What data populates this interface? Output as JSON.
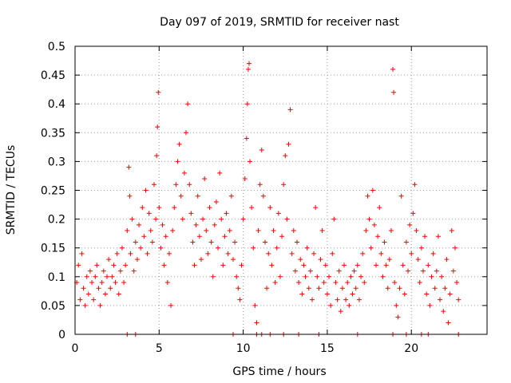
{
  "chart_data": {
    "type": "scatter",
    "title": "Day 097 of 2019, SRMTID for receiver nast",
    "xlabel": "GPS time / hours",
    "ylabel": "SRMTID / TECUs",
    "xlim": [
      0,
      24.5
    ],
    "ylim": [
      0,
      0.5
    ],
    "x_ticks": [
      "0",
      "5",
      "10",
      "15",
      "20"
    ],
    "y_ticks": [
      "0",
      "0.05",
      "0.1",
      "0.15",
      "0.2",
      "0.25",
      "0.3",
      "0.35",
      "0.4",
      "0.45",
      "0.5"
    ],
    "grid": true,
    "marker": "plus",
    "color": "#ff0000",
    "series": [
      {
        "name": "",
        "points": [
          [
            0.1,
            0.09
          ],
          [
            0.2,
            0.12
          ],
          [
            0.3,
            0.06
          ],
          [
            0.4,
            0.14
          ],
          [
            0.5,
            0.08
          ],
          [
            0.6,
            0.05
          ],
          [
            0.7,
            0.1
          ],
          [
            0.8,
            0.07
          ],
          [
            0.9,
            0.11
          ],
          [
            1.0,
            0.09
          ],
          [
            1.1,
            0.06
          ],
          [
            1.2,
            0.1
          ],
          [
            1.3,
            0.12
          ],
          [
            1.4,
            0.08
          ],
          [
            1.5,
            0.05
          ],
          [
            1.6,
            0.09
          ],
          [
            1.7,
            0.11
          ],
          [
            1.8,
            0.07
          ],
          [
            1.9,
            0.1
          ],
          [
            2.0,
            0.13
          ],
          [
            2.1,
            0.08
          ],
          [
            2.2,
            0.1
          ],
          [
            2.3,
            0.12
          ],
          [
            2.4,
            0.09
          ],
          [
            2.5,
            0.14
          ],
          [
            2.6,
            0.07
          ],
          [
            2.7,
            0.11
          ],
          [
            2.8,
            0.15
          ],
          [
            2.9,
            0.09
          ],
          [
            3.0,
            0.12
          ],
          [
            3.1,
            0.18
          ],
          [
            3.2,
            0.29
          ],
          [
            3.25,
            0.24
          ],
          [
            3.3,
            0.14
          ],
          [
            3.4,
            0.2
          ],
          [
            3.5,
            0.11
          ],
          [
            3.6,
            0.16
          ],
          [
            3.7,
            0.13
          ],
          [
            3.8,
            0.19
          ],
          [
            3.9,
            0.15
          ],
          [
            4.0,
            0.22
          ],
          [
            4.1,
            0.17
          ],
          [
            4.2,
            0.25
          ],
          [
            4.3,
            0.14
          ],
          [
            4.4,
            0.21
          ],
          [
            4.5,
            0.18
          ],
          [
            4.6,
            0.16
          ],
          [
            4.7,
            0.26
          ],
          [
            4.8,
            0.2
          ],
          [
            4.85,
            0.31
          ],
          [
            4.9,
            0.36
          ],
          [
            4.95,
            0.42
          ],
          [
            5.0,
            0.22
          ],
          [
            5.1,
            0.15
          ],
          [
            5.2,
            0.19
          ],
          [
            5.3,
            0.12
          ],
          [
            5.4,
            0.17
          ],
          [
            5.5,
            0.09
          ],
          [
            5.6,
            0.14
          ],
          [
            5.7,
            0.05
          ],
          [
            5.8,
            0.18
          ],
          [
            5.9,
            0.22
          ],
          [
            6.0,
            0.26
          ],
          [
            6.1,
            0.3
          ],
          [
            6.2,
            0.33
          ],
          [
            6.3,
            0.24
          ],
          [
            6.4,
            0.2
          ],
          [
            6.5,
            0.28
          ],
          [
            6.6,
            0.35
          ],
          [
            6.7,
            0.4
          ],
          [
            6.8,
            0.26
          ],
          [
            6.9,
            0.21
          ],
          [
            7.0,
            0.16
          ],
          [
            7.1,
            0.12
          ],
          [
            7.2,
            0.19
          ],
          [
            7.3,
            0.24
          ],
          [
            7.4,
            0.17
          ],
          [
            7.5,
            0.13
          ],
          [
            7.6,
            0.2
          ],
          [
            7.7,
            0.27
          ],
          [
            7.8,
            0.18
          ],
          [
            7.9,
            0.14
          ],
          [
            8.0,
            0.22
          ],
          [
            8.1,
            0.16
          ],
          [
            8.2,
            0.1
          ],
          [
            8.3,
            0.19
          ],
          [
            8.4,
            0.23
          ],
          [
            8.5,
            0.15
          ],
          [
            8.6,
            0.28
          ],
          [
            8.7,
            0.2
          ],
          [
            8.8,
            0.12
          ],
          [
            8.9,
            0.17
          ],
          [
            9.0,
            0.21
          ],
          [
            9.1,
            0.14
          ],
          [
            9.2,
            0.18
          ],
          [
            9.3,
            0.24
          ],
          [
            9.4,
            0.13
          ],
          [
            9.5,
            0.16
          ],
          [
            9.6,
            0.1
          ],
          [
            9.7,
            0.08
          ],
          [
            9.8,
            0.06
          ],
          [
            9.9,
            0.12
          ],
          [
            10.0,
            0.2
          ],
          [
            10.1,
            0.27
          ],
          [
            10.2,
            0.34
          ],
          [
            10.25,
            0.4
          ],
          [
            10.3,
            0.46
          ],
          [
            10.35,
            0.47
          ],
          [
            10.4,
            0.3
          ],
          [
            10.5,
            0.22
          ],
          [
            10.6,
            0.15
          ],
          [
            10.7,
            0.05
          ],
          [
            10.8,
            0.02
          ],
          [
            10.9,
            0.18
          ],
          [
            11.0,
            0.26
          ],
          [
            11.1,
            0.32
          ],
          [
            11.2,
            0.24
          ],
          [
            11.3,
            0.16
          ],
          [
            11.4,
            0.08
          ],
          [
            11.5,
            0.14
          ],
          [
            11.6,
            0.22
          ],
          [
            11.7,
            0.12
          ],
          [
            11.8,
            0.18
          ],
          [
            11.9,
            0.09
          ],
          [
            12.0,
            0.15
          ],
          [
            12.1,
            0.21
          ],
          [
            12.2,
            0.1
          ],
          [
            12.3,
            0.17
          ],
          [
            12.4,
            0.26
          ],
          [
            12.5,
            0.31
          ],
          [
            12.6,
            0.2
          ],
          [
            12.7,
            0.33
          ],
          [
            12.8,
            0.39
          ],
          [
            12.9,
            0.14
          ],
          [
            13.0,
            0.18
          ],
          [
            13.1,
            0.11
          ],
          [
            13.2,
            0.16
          ],
          [
            13.3,
            0.09
          ],
          [
            13.4,
            0.13
          ],
          [
            13.5,
            0.07
          ],
          [
            13.6,
            0.12
          ],
          [
            13.7,
            0.1
          ],
          [
            13.8,
            0.15
          ],
          [
            13.9,
            0.08
          ],
          [
            14.0,
            0.11
          ],
          [
            14.1,
            0.06
          ],
          [
            14.2,
            0.14
          ],
          [
            14.3,
            0.22
          ],
          [
            14.4,
            0.1
          ],
          [
            14.5,
            0.08
          ],
          [
            14.6,
            0.13
          ],
          [
            14.7,
            0.18
          ],
          [
            14.8,
            0.09
          ],
          [
            14.9,
            0.12
          ],
          [
            15.0,
            0.07
          ],
          [
            15.1,
            0.1
          ],
          [
            15.2,
            0.05
          ],
          [
            15.3,
            0.14
          ],
          [
            15.4,
            0.2
          ],
          [
            15.5,
            0.09
          ],
          [
            15.6,
            0.06
          ],
          [
            15.7,
            0.11
          ],
          [
            15.8,
            0.04
          ],
          [
            15.9,
            0.08
          ],
          [
            16.0,
            0.12
          ],
          [
            16.1,
            0.06
          ],
          [
            16.2,
            0.09
          ],
          [
            16.3,
            0.05
          ],
          [
            16.4,
            0.1
          ],
          [
            16.5,
            0.07
          ],
          [
            16.6,
            0.11
          ],
          [
            16.7,
            0.08
          ],
          [
            16.8,
            0.12
          ],
          [
            16.9,
            0.06
          ],
          [
            17.0,
            0.1
          ],
          [
            17.1,
            0.14
          ],
          [
            17.2,
            0.09
          ],
          [
            17.3,
            0.18
          ],
          [
            17.4,
            0.24
          ],
          [
            17.5,
            0.2
          ],
          [
            17.6,
            0.15
          ],
          [
            17.7,
            0.25
          ],
          [
            17.8,
            0.19
          ],
          [
            17.9,
            0.12
          ],
          [
            18.0,
            0.17
          ],
          [
            18.1,
            0.22
          ],
          [
            18.2,
            0.14
          ],
          [
            18.3,
            0.1
          ],
          [
            18.4,
            0.16
          ],
          [
            18.5,
            0.12
          ],
          [
            18.6,
            0.08
          ],
          [
            18.7,
            0.13
          ],
          [
            18.8,
            0.18
          ],
          [
            18.9,
            0.46
          ],
          [
            18.95,
            0.42
          ],
          [
            19.0,
            0.09
          ],
          [
            19.1,
            0.05
          ],
          [
            19.2,
            0.03
          ],
          [
            19.3,
            0.08
          ],
          [
            19.4,
            0.24
          ],
          [
            19.5,
            0.12
          ],
          [
            19.6,
            0.07
          ],
          [
            19.7,
            0.16
          ],
          [
            19.8,
            0.11
          ],
          [
            19.9,
            0.19
          ],
          [
            20.0,
            0.14
          ],
          [
            20.1,
            0.21
          ],
          [
            20.2,
            0.26
          ],
          [
            20.3,
            0.18
          ],
          [
            20.4,
            0.13
          ],
          [
            20.5,
            0.09
          ],
          [
            20.6,
            0.15
          ],
          [
            20.7,
            0.11
          ],
          [
            20.8,
            0.17
          ],
          [
            20.9,
            0.07
          ],
          [
            21.0,
            0.12
          ],
          [
            21.1,
            0.05
          ],
          [
            21.2,
            0.1
          ],
          [
            21.3,
            0.14
          ],
          [
            21.4,
            0.08
          ],
          [
            21.5,
            0.11
          ],
          [
            21.6,
            0.17
          ],
          [
            21.7,
            0.06
          ],
          [
            21.8,
            0.1
          ],
          [
            21.9,
            0.04
          ],
          [
            22.0,
            0.08
          ],
          [
            22.1,
            0.13
          ],
          [
            22.2,
            0.02
          ],
          [
            22.3,
            0.07
          ],
          [
            22.4,
            0.18
          ],
          [
            22.5,
            0.11
          ],
          [
            22.6,
            0.15
          ],
          [
            22.7,
            0.09
          ],
          [
            22.8,
            0.06
          ]
        ]
      },
      {
        "name": "",
        "points": [
          [
            3.1,
            0
          ],
          [
            3.6,
            0
          ],
          [
            9.4,
            0
          ],
          [
            10.8,
            0
          ],
          [
            11.1,
            0
          ],
          [
            11.6,
            0
          ],
          [
            12.4,
            0
          ],
          [
            13.3,
            0
          ],
          [
            14.5,
            0
          ],
          [
            16.8,
            0
          ],
          [
            18.9,
            0
          ],
          [
            19.7,
            0
          ],
          [
            20.6,
            0
          ],
          [
            21.0,
            0
          ],
          [
            22.8,
            0
          ]
        ]
      }
    ]
  }
}
